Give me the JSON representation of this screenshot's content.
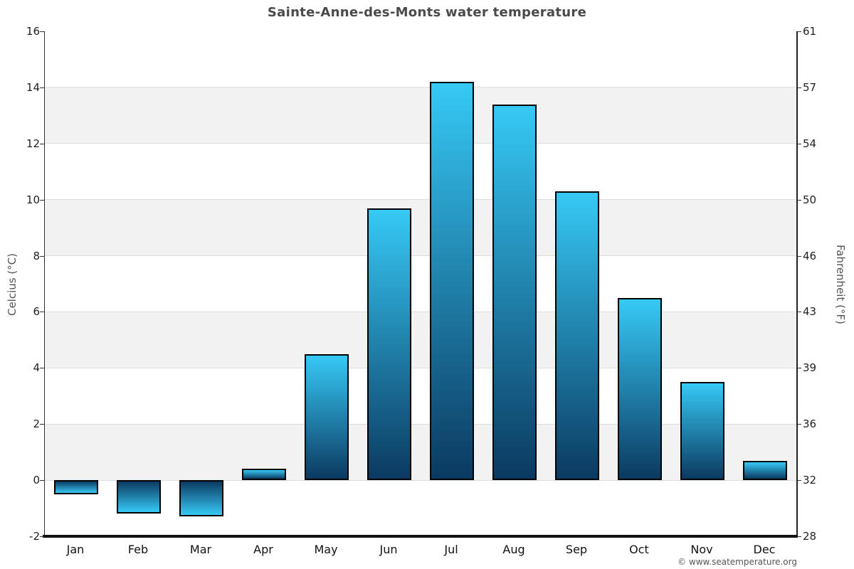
{
  "page": {
    "title": "Sainte-Anne-des-Monts water temperature",
    "copyright": "© www.seatemperature.org"
  },
  "chart_data": {
    "type": "bar",
    "title": "Sainte-Anne-des-Monts water temperature",
    "categories": [
      "Jan",
      "Feb",
      "Mar",
      "Apr",
      "May",
      "Jun",
      "Jul",
      "Aug",
      "Sep",
      "Oct",
      "Nov",
      "Dec"
    ],
    "values": [
      -0.5,
      -1.2,
      -1.3,
      0.4,
      4.5,
      9.7,
      14.2,
      13.4,
      10.3,
      6.5,
      3.5,
      0.7
    ],
    "unit": "°C",
    "xlabel": "",
    "ylabel_left": "Celcius (°C)",
    "ylabel_right": "Fahrenheit (°F)",
    "yticks_left": [
      16,
      14,
      12,
      10,
      8,
      6,
      4,
      2,
      0,
      -2
    ],
    "yticks_right": [
      61,
      57,
      54,
      50,
      46,
      43,
      39,
      36,
      32,
      28
    ],
    "ylim": [
      -2,
      16
    ],
    "legend": "none",
    "grid": "horizontal-striped-bands",
    "colors": {
      "bar_gradient_top": "#36c9f5",
      "bar_gradient_bottom": "#0b3a61",
      "bar_border": "#000000",
      "stripe_band": "#f2f2f2",
      "gridline": "#dddddd",
      "axis_line": "#333333",
      "x_axis_line": "#111111",
      "title_text": "#4a4a4a",
      "tick_text": "#222222",
      "axis_title_text": "#555555",
      "copyright_text": "#555555"
    }
  }
}
